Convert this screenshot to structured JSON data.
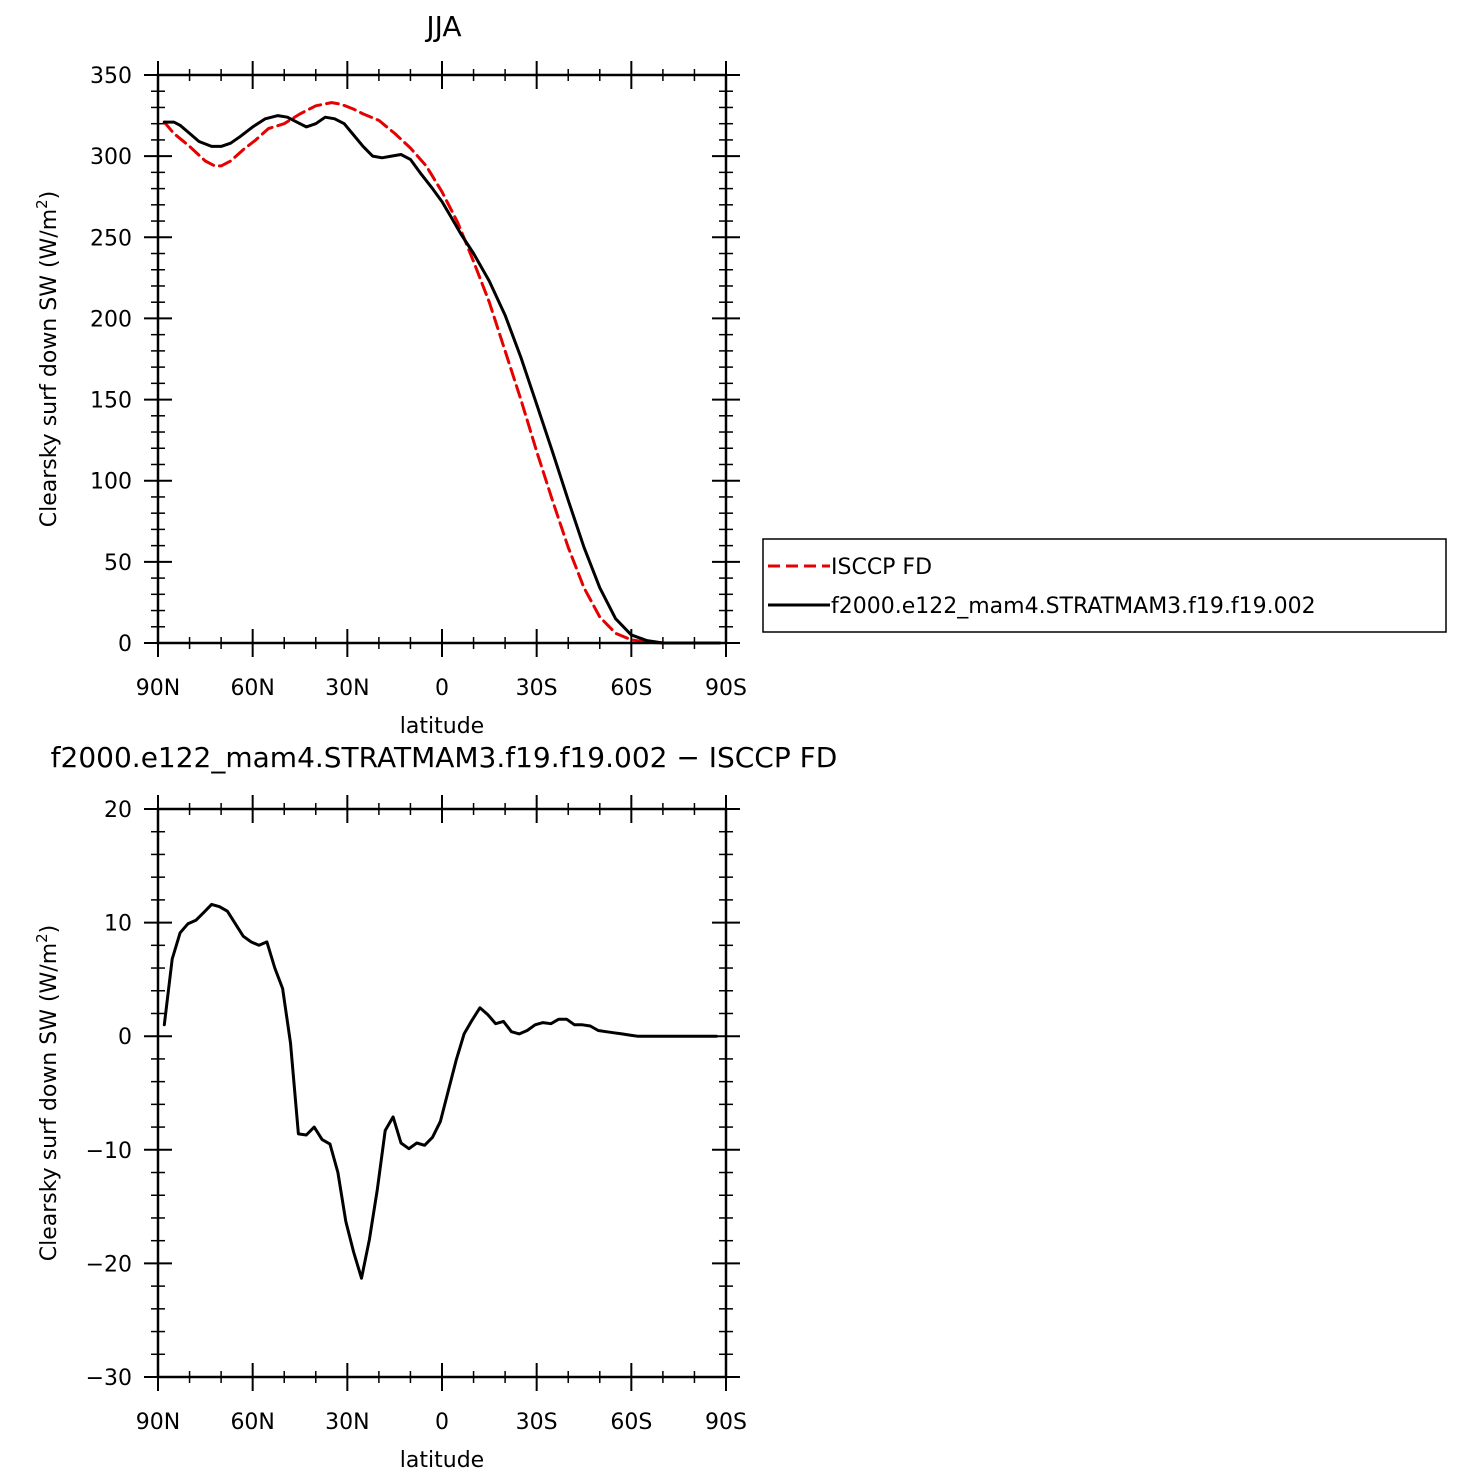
{
  "chart_data": [
    {
      "type": "line",
      "title": "JJA",
      "xlabel": "latitude",
      "ylabel": "Clearsky surf down SW (W/m²)",
      "xlim": [
        90,
        -90
      ],
      "ylim": [
        0,
        350
      ],
      "x_ticks": [
        90,
        60,
        30,
        0,
        -30,
        -60,
        -90
      ],
      "x_tick_labels": [
        "90N",
        "60N",
        "30N",
        "0",
        "30S",
        "60S",
        "90S"
      ],
      "y_ticks": [
        0,
        50,
        100,
        150,
        200,
        250,
        300,
        350
      ],
      "y_tick_labels": [
        "0",
        "50",
        "100",
        "150",
        "200",
        "250",
        "300",
        "350"
      ],
      "legend": {
        "placement": "right",
        "entries": [
          {
            "label": "ISCCP FD",
            "color": "#e60000",
            "dash": "dashed"
          },
          {
            "label": "f2000.e122_mam4.STRATMAM3.f19.f19.002",
            "color": "#000000",
            "dash": "solid"
          }
        ]
      },
      "series": [
        {
          "name": "ISCCP FD",
          "color": "#e60000",
          "dash": "dashed",
          "x": [
            88,
            85,
            80,
            75,
            72,
            70,
            67,
            63,
            59,
            55,
            50,
            45,
            40,
            35,
            32,
            28,
            25,
            20,
            15,
            10,
            5,
            0,
            -5,
            -10,
            -15,
            -20,
            -25,
            -30,
            -35,
            -40,
            -45,
            -50,
            -55,
            -60,
            -65,
            -70,
            -75,
            -78,
            -80,
            -85,
            -88
          ],
          "y": [
            321,
            314,
            306,
            297,
            294,
            294,
            297,
            304,
            310,
            317,
            320,
            326,
            331,
            333,
            332,
            329,
            326,
            322,
            314,
            305,
            294,
            278,
            259,
            235,
            210,
            180,
            150,
            118,
            88,
            59,
            34,
            16,
            6,
            2,
            0.5,
            0,
            0,
            0,
            0,
            0,
            0
          ]
        },
        {
          "name": "f2000.e122_mam4.STRATMAM3.f19.f19.002",
          "color": "#000000",
          "dash": "solid",
          "x": [
            88,
            85,
            83,
            80,
            77,
            73,
            70,
            67,
            64,
            60,
            56,
            52,
            49,
            46,
            43,
            40,
            37,
            34,
            31,
            28,
            25,
            22,
            19,
            16,
            13,
            10,
            7,
            3,
            0,
            -3,
            -6,
            -10,
            -15,
            -20,
            -25,
            -30,
            -35,
            -40,
            -45,
            -50,
            -55,
            -60,
            -65,
            -70,
            -75,
            -78,
            -80,
            -85,
            -88
          ],
          "y": [
            321,
            321,
            319,
            314,
            309,
            306,
            306,
            308,
            312,
            318,
            323,
            325,
            324,
            321,
            318,
            320,
            324,
            323,
            320,
            313,
            306,
            300,
            299,
            300,
            301,
            298,
            290,
            280,
            272,
            262,
            252,
            240,
            223,
            202,
            176,
            147,
            118,
            88,
            59,
            34,
            15,
            5,
            1.5,
            0,
            0,
            0,
            0,
            0,
            0
          ]
        }
      ]
    },
    {
      "type": "line",
      "title": "f2000.e122_mam4.STRATMAM3.f19.f19.002 − ISCCP FD",
      "xlabel": "latitude",
      "ylabel": "Clearsky surf down SW (W/m²)",
      "xlim": [
        90,
        -90
      ],
      "ylim": [
        -30,
        20
      ],
      "x_ticks": [
        90,
        60,
        30,
        0,
        -30,
        -60,
        -90
      ],
      "x_tick_labels": [
        "90N",
        "60N",
        "30N",
        "0",
        "30S",
        "60S",
        "90S"
      ],
      "y_ticks": [
        -30,
        -20,
        -10,
        0,
        10,
        20
      ],
      "y_tick_labels": [
        "−30",
        "−20",
        "−10",
        "0",
        "10",
        "20"
      ],
      "series": [
        {
          "color": "#000000",
          "dash": "solid",
          "x": [
            88,
            85.5,
            83,
            80.5,
            78,
            75.5,
            73,
            70.5,
            68,
            65.5,
            63,
            60.5,
            58,
            55.5,
            53,
            50.5,
            48,
            45.5,
            43,
            40.5,
            38,
            35.5,
            33,
            30.5,
            28,
            25.5,
            23,
            20.5,
            18,
            15.5,
            13,
            10.5,
            8,
            5.5,
            3,
            0.5,
            -2,
            -4.5,
            -7,
            -9.5,
            -12,
            -14.5,
            -17,
            -19.5,
            -22,
            -24.5,
            -27,
            -29.5,
            -32,
            -34.5,
            -37,
            -39.5,
            -42,
            -44.5,
            -47,
            -49.5,
            -52,
            -54.5,
            -57,
            -59.5,
            -62,
            -64.5,
            -67,
            -69.5,
            -72,
            -74.5,
            -77,
            -79.5,
            -82,
            -84.5,
            -87
          ],
          "y": [
            1.0,
            6.8,
            9.1,
            9.9,
            10.2,
            10.9,
            11.6,
            11.4,
            11.0,
            9.9,
            8.8,
            8.3,
            8.0,
            8.3,
            6.0,
            4.2,
            -0.6,
            -8.6,
            -8.7,
            -8.0,
            -9.1,
            -9.5,
            -12.0,
            -16.3,
            -19.0,
            -21.3,
            -17.9,
            -13.5,
            -8.3,
            -7.1,
            -9.4,
            -9.9,
            -9.4,
            -9.6,
            -8.9,
            -7.5,
            -4.8,
            -2.1,
            0.2,
            1.4,
            2.5,
            1.9,
            1.1,
            1.3,
            0.4,
            0.2,
            0.5,
            1.0,
            1.2,
            1.1,
            1.5,
            1.5,
            1.0,
            1.0,
            0.9,
            0.5,
            0.4,
            0.3,
            0.2,
            0.1,
            0.0,
            0.0,
            0.0,
            0.0,
            0.0,
            0.0,
            0.0,
            0.0,
            0.0,
            0.0,
            0.0
          ]
        }
      ]
    }
  ]
}
